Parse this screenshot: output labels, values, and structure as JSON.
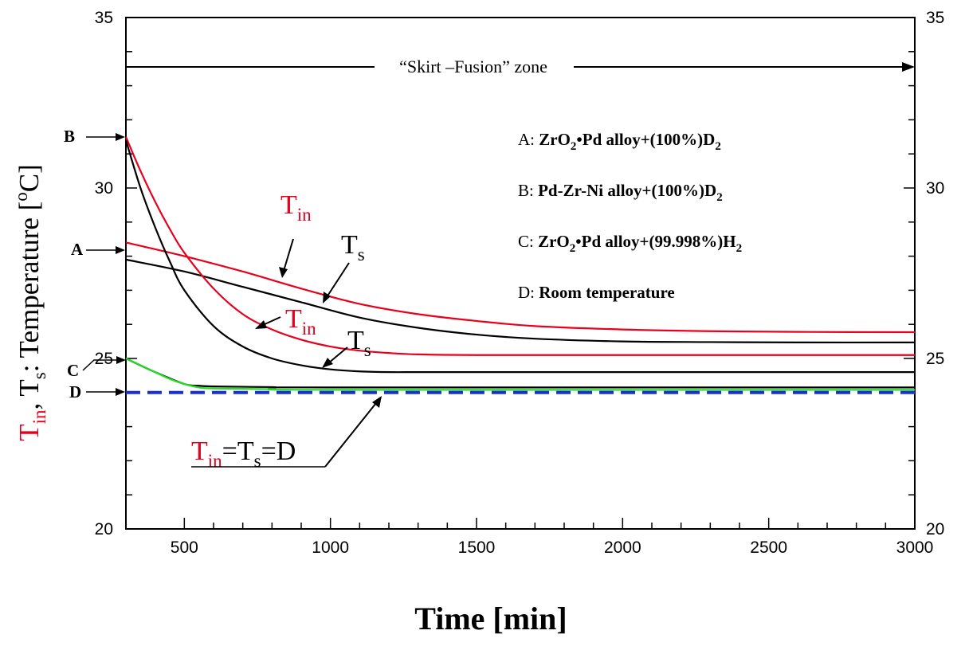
{
  "chart_data": {
    "type": "line",
    "xlabel": "Time [min]",
    "ylabel": {
      "parts": [
        {
          "text": "T",
          "color": "#e8001c",
          "sub": false
        },
        {
          "text": "in",
          "color": "#e8001c",
          "sub": true
        },
        {
          "text": ", T",
          "color": "#000000",
          "sub": false
        },
        {
          "text": "s",
          "color": "#000000",
          "sub": true
        },
        {
          "text": ": Temperature [",
          "color": "#000000",
          "sub": false
        },
        {
          "text": "o",
          "color": "#000000",
          "sup": true
        },
        {
          "text": "C]",
          "color": "#000000",
          "sub": false
        }
      ]
    },
    "xlim": [
      300,
      3000
    ],
    "ylim": [
      20,
      35
    ],
    "x_ticks": [
      "500",
      "1000",
      "1500",
      "2000",
      "2500",
      "3000"
    ],
    "y_ticks": [
      "20",
      "25",
      "30",
      "35"
    ],
    "zone_label": "“Skirt –Fusion” zone",
    "legend": [
      {
        "letter": "A",
        "sep": ": ",
        "parts": [
          {
            "t": "ZrO"
          },
          {
            "t": "2",
            "sub": true
          },
          {
            "t": "•Pd alloy+(100%)D"
          },
          {
            "t": "2",
            "sub": true
          }
        ]
      },
      {
        "letter": "B",
        "sep": ": ",
        "parts": [
          {
            "t": "Pd-Zr-Ni alloy+(100%)D"
          },
          {
            "t": "2",
            "sub": true
          }
        ]
      },
      {
        "letter": "C",
        "sep": ": ",
        "parts": [
          {
            "t": "ZrO"
          },
          {
            "t": "2",
            "sub": true
          },
          {
            "t": "•Pd alloy+(99.998%)H"
          },
          {
            "t": "2",
            "sub": true
          }
        ]
      },
      {
        "letter": "D",
        "sep": ": ",
        "parts": [
          {
            "t": "Room temperature"
          }
        ]
      }
    ],
    "left_markers": [
      "B",
      "A",
      "C",
      "D"
    ],
    "annotations": {
      "tin": {
        "main": "T",
        "sub": "in"
      },
      "ts": {
        "main": "T",
        "sub": "s"
      },
      "eq": {
        "tin": "T",
        "tin_sub": "in",
        "eq1": "=T",
        "ts_sub": "s",
        "eq2": "=D"
      }
    },
    "series": [
      {
        "name": "A: Tin",
        "color": "#e8001c",
        "x": [
          300,
          500,
          700,
          900,
          1100,
          1300,
          1500,
          1700,
          2000,
          2300,
          2600,
          3000
        ],
        "y": [
          28.4,
          28.0,
          27.55,
          27.05,
          26.6,
          26.3,
          26.1,
          25.95,
          25.85,
          25.8,
          25.78,
          25.77
        ]
      },
      {
        "name": "A: Ts",
        "color": "#000000",
        "x": [
          300,
          500,
          700,
          900,
          1100,
          1300,
          1500,
          1700,
          2000,
          2300,
          2600,
          3000
        ],
        "y": [
          27.9,
          27.55,
          27.1,
          26.65,
          26.2,
          25.9,
          25.7,
          25.58,
          25.5,
          25.48,
          25.47,
          25.47
        ]
      },
      {
        "name": "B: Tin",
        "color": "#e8001c",
        "x": [
          300,
          350,
          400,
          450,
          500,
          600,
          700,
          800,
          900,
          1000,
          1100,
          1200,
          1300,
          1500,
          2000,
          3000
        ],
        "y": [
          31.5,
          30.5,
          29.6,
          28.8,
          28.1,
          27.05,
          26.3,
          25.85,
          25.55,
          25.35,
          25.23,
          25.16,
          25.12,
          25.1,
          25.1,
          25.1
        ]
      },
      {
        "name": "B: Ts",
        "color": "#000000",
        "x": [
          300,
          350,
          400,
          450,
          500,
          600,
          700,
          800,
          900,
          1000,
          1100,
          1200,
          1300,
          1500,
          2000,
          3000
        ],
        "y": [
          31.4,
          30.0,
          28.85,
          27.85,
          27.0,
          25.95,
          25.35,
          25.0,
          24.8,
          24.68,
          24.62,
          24.6,
          24.6,
          24.6,
          24.6,
          24.6
        ]
      },
      {
        "name": "C: Ts",
        "color": "#000000",
        "x": [
          300,
          400,
          500,
          550,
          600,
          800,
          1000,
          3000
        ],
        "y": [
          25.0,
          24.6,
          24.25,
          24.2,
          24.18,
          24.16,
          24.15,
          24.15
        ]
      },
      {
        "name": "C: Tin",
        "color": "#22dd22",
        "x": [
          300,
          400,
          450,
          500,
          550,
          600,
          800,
          1000,
          3000
        ],
        "y": [
          25.0,
          24.6,
          24.4,
          24.25,
          24.15,
          24.12,
          24.1,
          24.08,
          24.08
        ]
      },
      {
        "name": "D: Room temperature",
        "color": "#1a2fd6",
        "dashed": true,
        "x": [
          300,
          3000
        ],
        "y": [
          24.0,
          24.0
        ]
      }
    ]
  }
}
